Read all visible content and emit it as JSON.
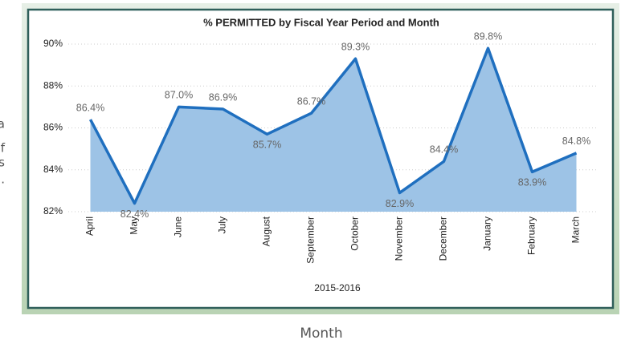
{
  "side_text": [
    "a",
    "f",
    "s",
    "."
  ],
  "caption": "Month",
  "chart_data": {
    "type": "area",
    "title": "% PERMITTED by Fiscal Year Period and Month",
    "x_label": "2015-2016",
    "categories": [
      "April",
      "May",
      "June",
      "July",
      "August",
      "September",
      "October",
      "November",
      "December",
      "January",
      "February",
      "March"
    ],
    "values": [
      86.4,
      82.4,
      87.0,
      86.9,
      85.7,
      86.7,
      89.3,
      82.9,
      84.4,
      89.8,
      83.9,
      84.8
    ],
    "value_labels": [
      "86.4%",
      "82.4%",
      "87.0%",
      "86.9%",
      "85.7%",
      "86.7%",
      "89.3%",
      "82.9%",
      "84.4%",
      "89.8%",
      "83.9%",
      "84.8%"
    ],
    "color": "#1f6fbf",
    "fill": "#9dc3e6",
    "ylim": [
      82,
      90
    ],
    "yticks": [
      {
        "value": 82,
        "label": "82%"
      },
      {
        "value": 84,
        "label": "84%"
      },
      {
        "value": 86,
        "label": "86%"
      },
      {
        "value": 88,
        "label": "88%"
      },
      {
        "value": 90,
        "label": "90%"
      }
    ],
    "grid": true
  }
}
